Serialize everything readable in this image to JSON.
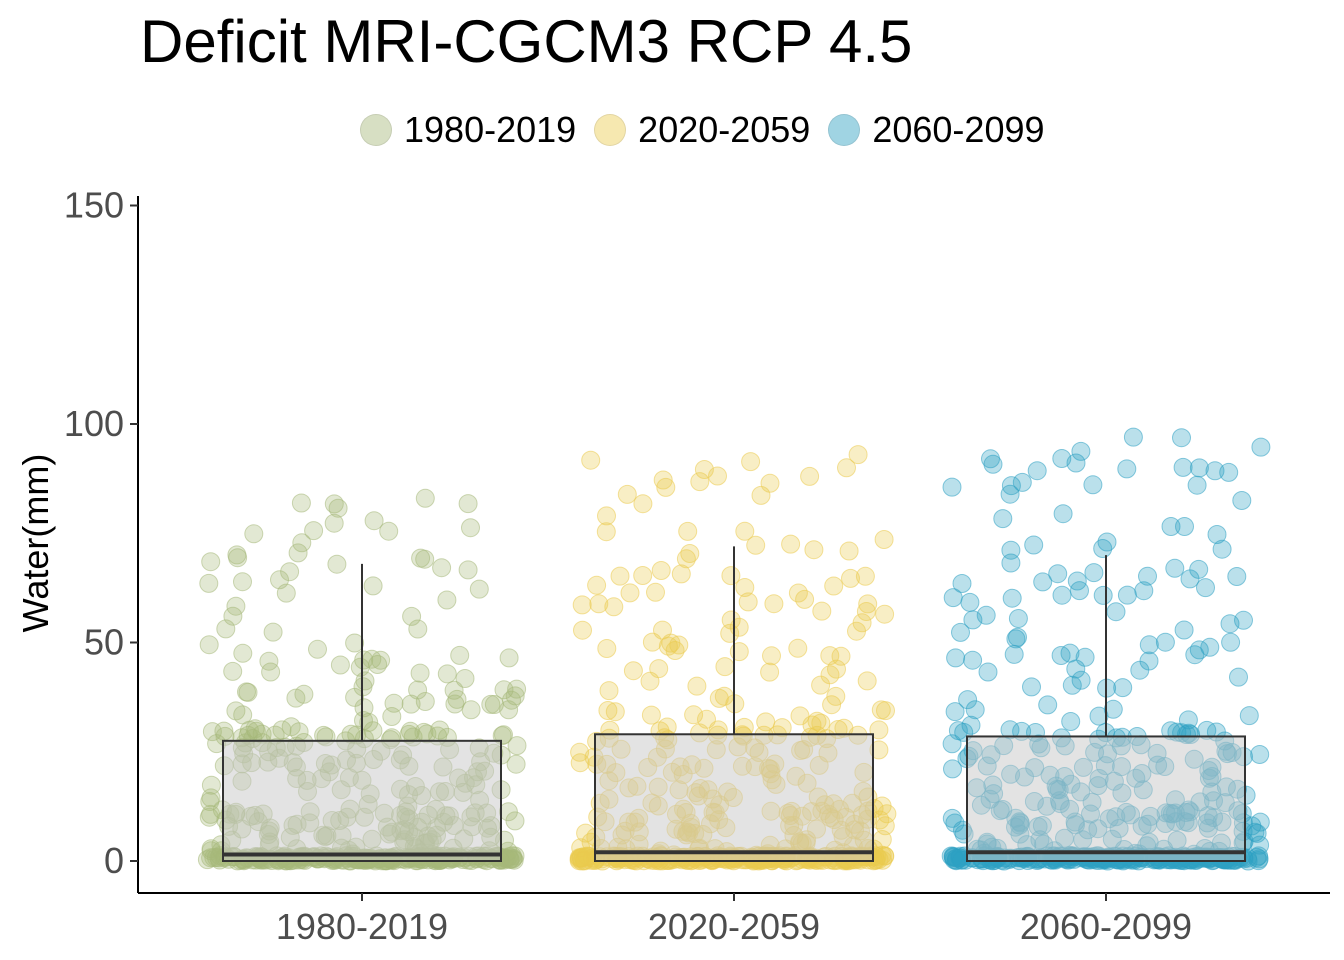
{
  "chart_data": {
    "type": "box",
    "title": "Deficit MRI-CGCM3 RCP 4.5",
    "xlabel": "",
    "ylabel": "Water(mm)",
    "ylim": [
      -7,
      152
    ],
    "yticks": [
      0,
      50,
      100,
      150
    ],
    "grid": false,
    "legend_position": "top",
    "categories": [
      "1980-2019",
      "2020-2059",
      "2060-2099"
    ],
    "series": [
      {
        "name": "1980-2019",
        "color": "#A6B87A",
        "box": {
          "min": 0,
          "q1": 0,
          "median": 1.5,
          "q3": 27.5,
          "whisker_high": 68
        },
        "points_max": 83,
        "point_count": 480
      },
      {
        "name": "2020-2059",
        "color": "#EBCB4F",
        "box": {
          "min": 0,
          "q1": 0,
          "median": 2,
          "q3": 29,
          "whisker_high": 72
        },
        "points_max": 93,
        "point_count": 480
      },
      {
        "name": "2060-2099",
        "color": "#2DA0C2",
        "box": {
          "min": 0,
          "q1": 0,
          "median": 2,
          "q3": 28.5,
          "whisker_high": 70
        },
        "points_max": 97,
        "point_count": 480
      }
    ]
  }
}
